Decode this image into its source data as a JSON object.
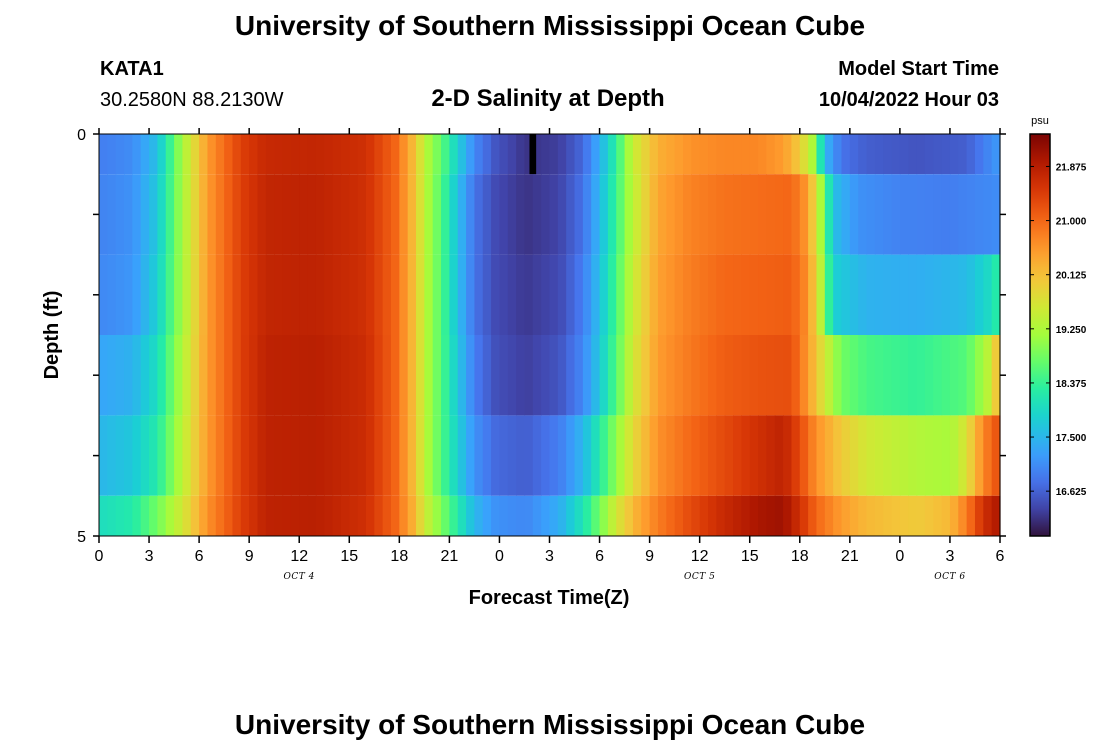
{
  "chart_data": {
    "type": "heatmap",
    "title": "University of Southern Mississippi Ocean Cube",
    "footer_title": "University of Southern Mississippi Ocean Cube",
    "station": {
      "name": "KATA1",
      "coords": "30.2580N  88.2130W"
    },
    "subtitle": "2-D Salinity at Depth",
    "model_start": {
      "label": "Model Start Time",
      "value": "10/04/2022 Hour 03"
    },
    "xlabel": "Forecast Time(Z)",
    "ylabel": "Depth (ft)",
    "x_ticks": [
      "0",
      "3",
      "6",
      "9",
      "12",
      "15",
      "18",
      "21",
      "0",
      "3",
      "6",
      "9",
      "12",
      "15",
      "18",
      "21",
      "0",
      "3",
      "6"
    ],
    "x_range_hours": [
      0,
      54
    ],
    "date_labels": [
      {
        "text": "OCT 4",
        "hour": 12
      },
      {
        "text": "OCT 5",
        "hour": 36
      },
      {
        "text": "OCT 6",
        "hour": 51
      }
    ],
    "y_ticks": [
      "0",
      "5"
    ],
    "y_range": [
      0,
      5
    ],
    "colorbar": {
      "unit": "psu",
      "range": [
        15.9,
        22.4
      ],
      "ticks": [
        "21.875",
        "21.000",
        "20.125",
        "19.250",
        "18.375",
        "17.500",
        "16.625"
      ]
    },
    "depth_layers": [
      0,
      1,
      2,
      3,
      4,
      5
    ],
    "profiles": [
      {
        "layer": 0,
        "keys": [
          [
            0,
            16.9
          ],
          [
            2,
            17.05
          ],
          [
            3.5,
            17.6
          ],
          [
            5,
            19.2
          ],
          [
            6.5,
            20.5
          ],
          [
            8.5,
            21.4
          ],
          [
            10,
            21.7
          ],
          [
            13,
            21.75
          ],
          [
            16,
            21.6
          ],
          [
            17.8,
            21.0
          ],
          [
            18.8,
            20.2
          ],
          [
            19.6,
            19.3
          ],
          [
            20.5,
            18.7
          ],
          [
            21.5,
            17.8
          ],
          [
            22.5,
            17.0
          ],
          [
            23.8,
            16.5
          ],
          [
            25.6,
            16.2
          ],
          [
            27.6,
            16.3
          ],
          [
            29,
            16.7
          ],
          [
            30,
            17.4
          ],
          [
            31,
            18.3
          ],
          [
            32,
            19.5
          ],
          [
            33.5,
            20.3
          ],
          [
            35.5,
            20.6
          ],
          [
            37.5,
            20.7
          ],
          [
            39.5,
            20.7
          ],
          [
            41,
            20.5
          ],
          [
            42,
            20.0
          ],
          [
            42.8,
            19.2
          ],
          [
            43.5,
            17.5
          ],
          [
            44.5,
            16.8
          ],
          [
            46,
            16.6
          ],
          [
            49,
            16.5
          ],
          [
            52,
            16.6
          ],
          [
            53,
            16.9
          ],
          [
            54,
            17.2
          ]
        ],
        "block": {
          "from_hour": 25.8,
          "to_hour": 26.2
        }
      },
      {
        "layer": 1,
        "keys": [
          [
            0,
            16.95
          ],
          [
            2,
            17.1
          ],
          [
            3.5,
            17.7
          ],
          [
            5,
            19.2
          ],
          [
            6.5,
            20.5
          ],
          [
            8.5,
            21.4
          ],
          [
            10,
            21.75
          ],
          [
            13,
            21.8
          ],
          [
            16,
            21.6
          ],
          [
            17.8,
            21.0
          ],
          [
            18.8,
            20.2
          ],
          [
            19.6,
            19.3
          ],
          [
            20.5,
            18.6
          ],
          [
            21.5,
            17.6
          ],
          [
            22.5,
            16.8
          ],
          [
            23.8,
            16.4
          ],
          [
            25.6,
            16.2
          ],
          [
            27.6,
            16.35
          ],
          [
            29,
            16.8
          ],
          [
            30,
            17.5
          ],
          [
            31,
            18.4
          ],
          [
            32,
            19.4
          ],
          [
            33.5,
            20.4
          ],
          [
            35.5,
            20.75
          ],
          [
            37.5,
            20.9
          ],
          [
            39.5,
            20.95
          ],
          [
            41.5,
            21.0
          ],
          [
            42.5,
            20.5
          ],
          [
            43.2,
            19.3
          ],
          [
            44,
            17.6
          ],
          [
            45.5,
            17.1
          ],
          [
            48,
            16.95
          ],
          [
            51,
            16.9
          ],
          [
            53,
            17.0
          ],
          [
            54,
            17.05
          ]
        ]
      },
      {
        "layer": 2,
        "keys": [
          [
            0,
            17.0
          ],
          [
            2,
            17.15
          ],
          [
            3.5,
            17.8
          ],
          [
            5,
            19.2
          ],
          [
            6.5,
            20.5
          ],
          [
            8.5,
            21.4
          ],
          [
            10,
            21.75
          ],
          [
            13,
            21.8
          ],
          [
            16,
            21.6
          ],
          [
            17.8,
            21.0
          ],
          [
            18.8,
            20.2
          ],
          [
            19.6,
            19.3
          ],
          [
            20.5,
            18.6
          ],
          [
            21.5,
            17.6
          ],
          [
            22.5,
            16.8
          ],
          [
            23.8,
            16.4
          ],
          [
            25.6,
            16.25
          ],
          [
            27.6,
            16.4
          ],
          [
            29,
            16.9
          ],
          [
            30,
            17.6
          ],
          [
            31,
            18.5
          ],
          [
            32,
            19.5
          ],
          [
            33.5,
            20.45
          ],
          [
            35.5,
            20.8
          ],
          [
            37.5,
            21.0
          ],
          [
            39.5,
            21.05
          ],
          [
            41.5,
            21.1
          ],
          [
            42.5,
            20.6
          ],
          [
            43.2,
            19.5
          ],
          [
            44,
            17.8
          ],
          [
            46,
            17.45
          ],
          [
            49,
            17.4
          ],
          [
            52,
            17.55
          ],
          [
            53.5,
            18.0
          ],
          [
            54,
            18.4
          ]
        ]
      },
      {
        "layer": 3,
        "keys": [
          [
            0,
            17.3
          ],
          [
            2,
            17.45
          ],
          [
            3.5,
            18.0
          ],
          [
            5,
            19.3
          ],
          [
            6.5,
            20.5
          ],
          [
            8.5,
            21.4
          ],
          [
            10,
            21.8
          ],
          [
            13,
            21.85
          ],
          [
            16,
            21.65
          ],
          [
            17.8,
            21.0
          ],
          [
            18.8,
            20.2
          ],
          [
            19.6,
            19.3
          ],
          [
            20.5,
            18.6
          ],
          [
            21.5,
            17.7
          ],
          [
            22.5,
            16.9
          ],
          [
            23.8,
            16.45
          ],
          [
            25.6,
            16.3
          ],
          [
            27.6,
            16.5
          ],
          [
            29,
            17.0
          ],
          [
            30,
            17.7
          ],
          [
            31,
            18.6
          ],
          [
            32,
            19.6
          ],
          [
            33.5,
            20.5
          ],
          [
            35.5,
            20.85
          ],
          [
            37.5,
            21.1
          ],
          [
            39.5,
            21.2
          ],
          [
            41.5,
            21.25
          ],
          [
            42.5,
            20.5
          ],
          [
            43.5,
            19.6
          ],
          [
            44.5,
            18.8
          ],
          [
            46,
            18.5
          ],
          [
            49,
            18.35
          ],
          [
            52,
            18.6
          ],
          [
            53.2,
            19.3
          ],
          [
            54,
            20.3
          ]
        ]
      },
      {
        "layer": 4,
        "keys": [
          [
            0,
            17.5
          ],
          [
            2,
            17.7
          ],
          [
            3.5,
            18.2
          ],
          [
            5,
            19.4
          ],
          [
            6.5,
            20.5
          ],
          [
            8.5,
            21.4
          ],
          [
            10,
            21.8
          ],
          [
            13,
            21.85
          ],
          [
            16,
            21.65
          ],
          [
            17.8,
            21.0
          ],
          [
            18.8,
            20.2
          ],
          [
            19.6,
            19.3
          ],
          [
            20.5,
            18.6
          ],
          [
            21.5,
            17.8
          ],
          [
            22.5,
            17.1
          ],
          [
            23.8,
            16.7
          ],
          [
            25.6,
            16.6
          ],
          [
            27.6,
            16.9
          ],
          [
            29,
            17.5
          ],
          [
            30,
            18.2
          ],
          [
            31,
            19.0
          ],
          [
            32,
            19.8
          ],
          [
            33.5,
            20.6
          ],
          [
            35.5,
            21.0
          ],
          [
            37.5,
            21.3
          ],
          [
            39.5,
            21.6
          ],
          [
            41,
            21.8
          ],
          [
            42,
            21.3
          ],
          [
            43,
            20.6
          ],
          [
            44.5,
            20.0
          ],
          [
            46,
            19.6
          ],
          [
            49,
            19.3
          ],
          [
            51,
            19.2
          ],
          [
            52,
            19.7
          ],
          [
            53,
            20.7
          ],
          [
            54,
            21.3
          ]
        ]
      },
      {
        "layer": 5,
        "keys": [
          [
            0,
            18.0
          ],
          [
            2,
            18.2
          ],
          [
            3.5,
            18.8
          ],
          [
            5,
            19.6
          ],
          [
            6.5,
            20.6
          ],
          [
            8.5,
            21.4
          ],
          [
            10,
            21.8
          ],
          [
            13,
            21.85
          ],
          [
            16,
            21.6
          ],
          [
            17.8,
            21.0
          ],
          [
            18.8,
            20.3
          ],
          [
            19.6,
            19.5
          ],
          [
            20.5,
            18.9
          ],
          [
            21.5,
            18.2
          ],
          [
            22.5,
            17.5
          ],
          [
            23.8,
            17.1
          ],
          [
            25.6,
            17.0
          ],
          [
            27.6,
            17.4
          ],
          [
            29,
            18.1
          ],
          [
            30,
            18.8
          ],
          [
            31,
            19.6
          ],
          [
            32,
            20.2
          ],
          [
            33.5,
            20.8
          ],
          [
            35.5,
            21.3
          ],
          [
            37.5,
            21.7
          ],
          [
            39.5,
            22.0
          ],
          [
            41,
            22.1
          ],
          [
            42,
            21.6
          ],
          [
            43,
            21.0
          ],
          [
            44.5,
            20.5
          ],
          [
            46,
            20.2
          ],
          [
            49,
            20.0
          ],
          [
            51,
            20.2
          ],
          [
            52,
            20.8
          ],
          [
            53,
            21.6
          ],
          [
            54,
            22.0
          ]
        ]
      }
    ]
  }
}
